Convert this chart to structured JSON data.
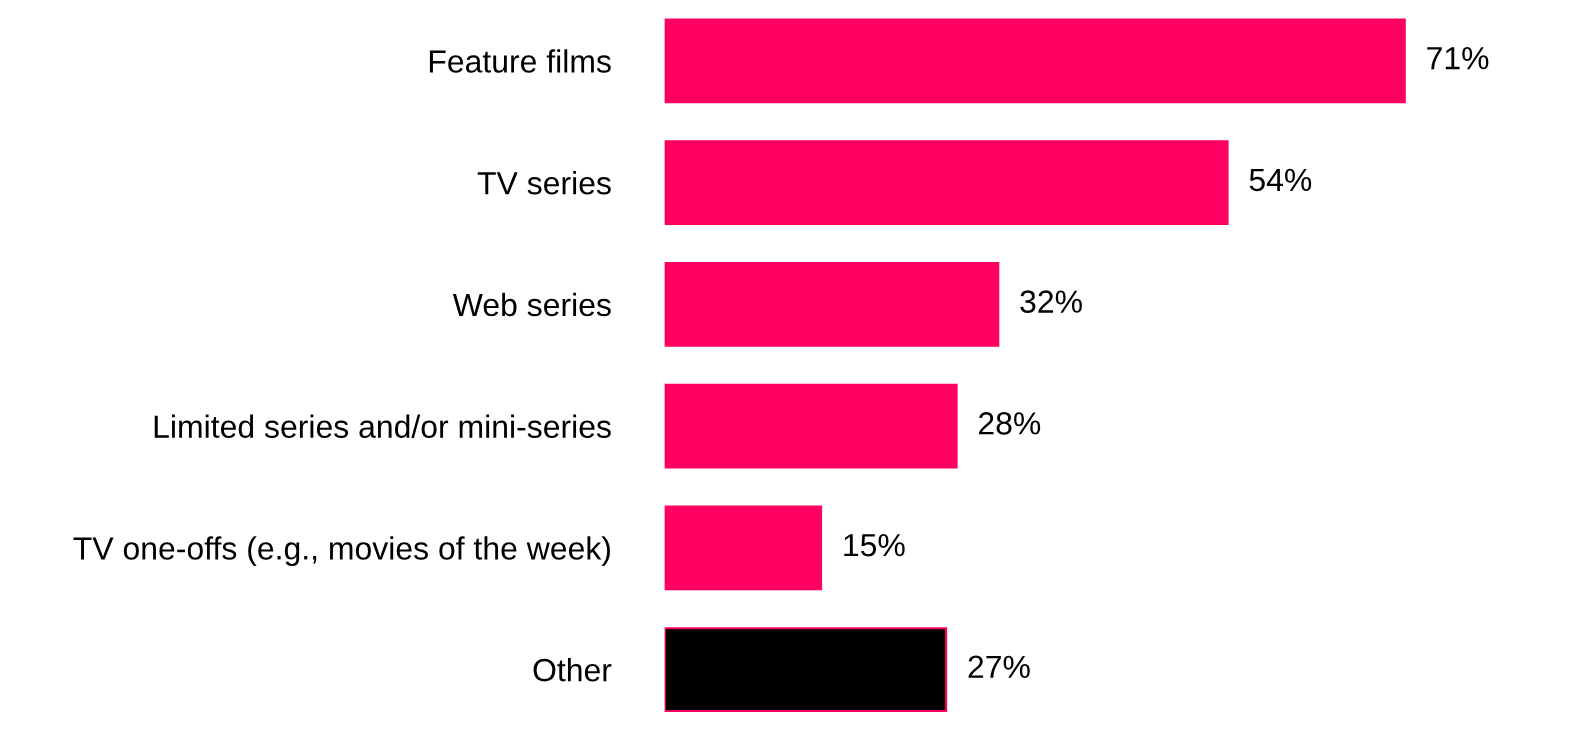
{
  "chart_data": {
    "type": "bar",
    "orientation": "horizontal",
    "categories": [
      "Feature films",
      "TV series",
      "Web series",
      "Limited series and/or mini-series",
      "TV one-offs (e.g., movies of the week)",
      "Other"
    ],
    "values": [
      71,
      54,
      32,
      28,
      15,
      27
    ],
    "colors": [
      "#ff0062",
      "#ff0062",
      "#ff0062",
      "#ff0062",
      "#ff0062",
      "#000000"
    ],
    "value_labels": [
      "71%",
      "54%",
      "32%",
      "28%",
      "15%",
      "27%"
    ],
    "grid": false,
    "legend": false,
    "tick_labels": "y"
  }
}
